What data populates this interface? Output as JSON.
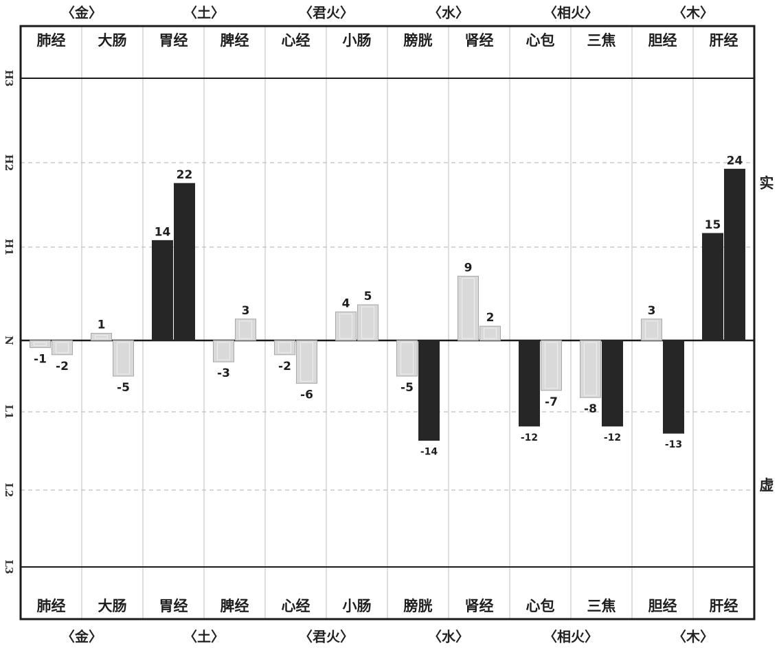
{
  "chart_data": {
    "type": "bar",
    "groups": [
      "〈金〉",
      "〈土〉",
      "〈君火〉",
      "〈水〉",
      "〈相火〉",
      "〈木〉"
    ],
    "categories": [
      "肺经",
      "大肠",
      "胃经",
      "脾经",
      "心经",
      "小肠",
      "膀胱",
      "肾经",
      "心包",
      "三焦",
      "胆经",
      "肝经"
    ],
    "levels": [
      "H3",
      "H2",
      "H1",
      "N",
      "L1",
      "L2",
      "L3"
    ],
    "side_labels": {
      "top": "实",
      "bottom": "虚"
    },
    "series": [
      {
        "values": [
          -1,
          1,
          14,
          -3,
          -2,
          4,
          -5,
          9,
          -12,
          -8,
          3,
          15
        ]
      },
      {
        "values": [
          -2,
          -5,
          22,
          3,
          -6,
          5,
          -14,
          2,
          -7,
          -12,
          -13,
          24
        ]
      }
    ],
    "highlight_threshold": 10,
    "colors": {
      "dark": "#262626",
      "light": "#d9d9d9",
      "light_stroke": "#a6a6a6",
      "grid": "#bdbdbd",
      "frame": "#1a1a1a"
    },
    "ylim": [
      -31,
      36
    ],
    "legend": "none",
    "grid": true
  }
}
